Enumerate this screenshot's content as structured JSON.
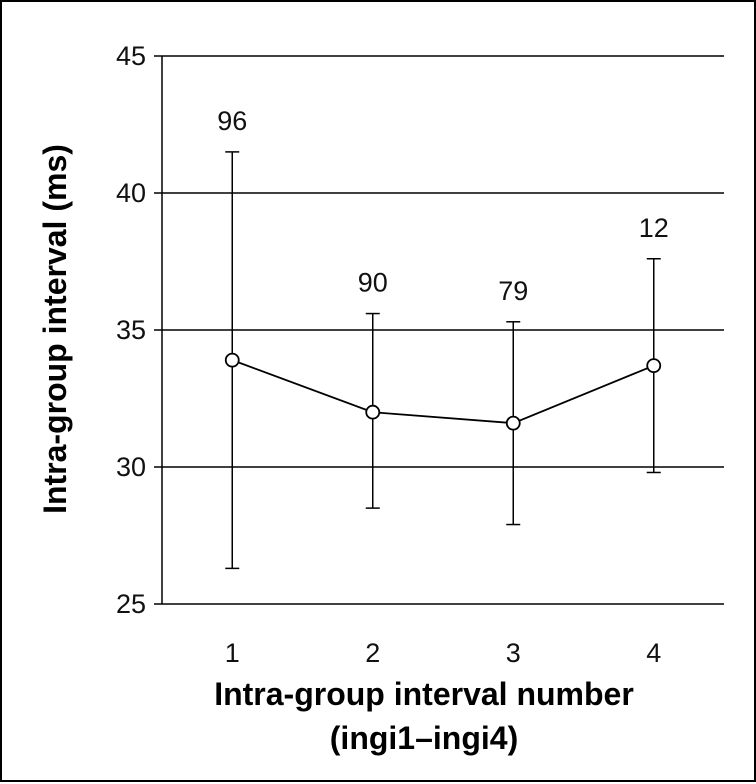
{
  "chart_data": {
    "type": "line",
    "title": "",
    "xlabel_lines": [
      "Intra-group interval number",
      "(ingi1–ingi4)"
    ],
    "ylabel": "Intra-group interval (ms)",
    "categories": [
      "1",
      "2",
      "3",
      "4"
    ],
    "ylim": [
      25,
      45
    ],
    "yticks": [
      25,
      30,
      35,
      40,
      45
    ],
    "ytick_labels": [
      "25",
      "30",
      "35",
      "40",
      "45"
    ],
    "grid": true,
    "legend": "none",
    "series": [
      {
        "values": [
          33.9,
          32.0,
          31.6,
          33.7
        ],
        "error_low": [
          26.3,
          28.5,
          27.9,
          29.8
        ],
        "error_high": [
          41.5,
          35.6,
          35.3,
          37.6
        ],
        "point_labels": [
          "96",
          "90",
          "79",
          "12"
        ]
      }
    ],
    "colors": {
      "line": "#000000",
      "marker_fill": "#ffffff",
      "grid": "#000000"
    }
  }
}
